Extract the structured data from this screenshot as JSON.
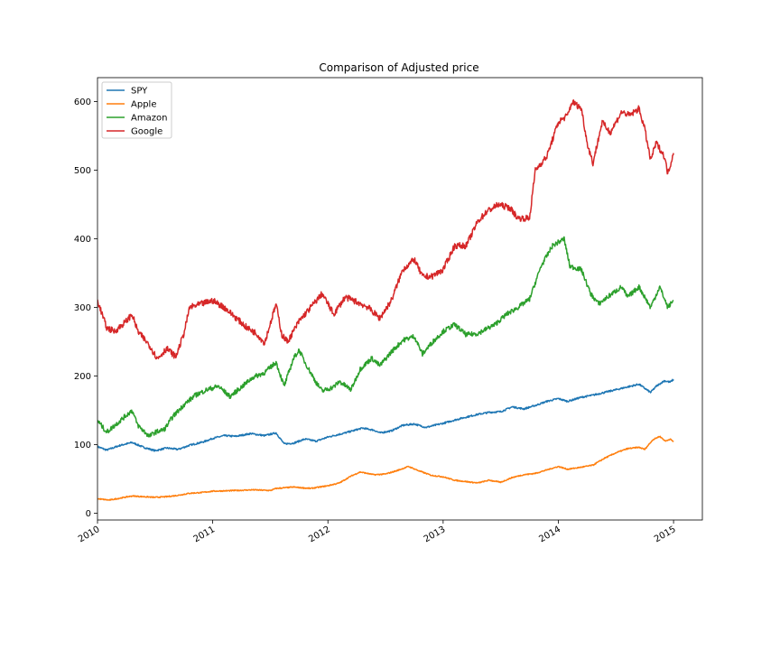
{
  "chart_data": {
    "type": "line",
    "title": "Comparison of Adjusted price",
    "xlabel": "",
    "ylabel": "",
    "xlim": [
      2010.0,
      2015.25
    ],
    "ylim": [
      -10,
      635
    ],
    "grid": false,
    "legend_location": "upper-left",
    "x_ticks": [
      2010,
      2011,
      2012,
      2013,
      2014,
      2015
    ],
    "x_tick_labels": [
      "2010",
      "2011",
      "2012",
      "2013",
      "2014",
      "2015"
    ],
    "y_ticks": [
      0,
      100,
      200,
      300,
      400,
      500,
      600
    ],
    "y_tick_labels": [
      "0",
      "100",
      "200",
      "300",
      "400",
      "500",
      "600"
    ],
    "series": [
      {
        "name": "SPY",
        "color": "#1f77b4",
        "points": [
          [
            2010.0,
            97
          ],
          [
            2010.08,
            92
          ],
          [
            2010.2,
            99
          ],
          [
            2010.3,
            103
          ],
          [
            2010.4,
            96
          ],
          [
            2010.5,
            91
          ],
          [
            2010.6,
            95
          ],
          [
            2010.7,
            93
          ],
          [
            2010.8,
            99
          ],
          [
            2010.92,
            104
          ],
          [
            2011.0,
            109
          ],
          [
            2011.1,
            113
          ],
          [
            2011.2,
            112
          ],
          [
            2011.33,
            116
          ],
          [
            2011.45,
            113
          ],
          [
            2011.55,
            117
          ],
          [
            2011.62,
            101
          ],
          [
            2011.7,
            102
          ],
          [
            2011.8,
            108
          ],
          [
            2011.9,
            105
          ],
          [
            2012.0,
            111
          ],
          [
            2012.15,
            117
          ],
          [
            2012.3,
            124
          ],
          [
            2012.4,
            121
          ],
          [
            2012.45,
            117
          ],
          [
            2012.55,
            120
          ],
          [
            2012.65,
            128
          ],
          [
            2012.75,
            130
          ],
          [
            2012.85,
            125
          ],
          [
            2012.95,
            129
          ],
          [
            2013.0,
            131
          ],
          [
            2013.15,
            138
          ],
          [
            2013.3,
            144
          ],
          [
            2013.4,
            147
          ],
          [
            2013.5,
            148
          ],
          [
            2013.6,
            155
          ],
          [
            2013.7,
            152
          ],
          [
            2013.8,
            157
          ],
          [
            2013.9,
            163
          ],
          [
            2014.0,
            167
          ],
          [
            2014.08,
            163
          ],
          [
            2014.2,
            169
          ],
          [
            2014.3,
            172
          ],
          [
            2014.4,
            176
          ],
          [
            2014.5,
            180
          ],
          [
            2014.6,
            184
          ],
          [
            2014.7,
            188
          ],
          [
            2014.8,
            176
          ],
          [
            2014.85,
            185
          ],
          [
            2014.92,
            193
          ],
          [
            2014.97,
            191
          ],
          [
            2015.0,
            195
          ]
        ]
      },
      {
        "name": "Apple",
        "color": "#ff7f0e",
        "points": [
          [
            2010.0,
            21
          ],
          [
            2010.1,
            19
          ],
          [
            2010.2,
            22
          ],
          [
            2010.3,
            25
          ],
          [
            2010.4,
            24
          ],
          [
            2010.5,
            23
          ],
          [
            2010.6,
            24
          ],
          [
            2010.7,
            26
          ],
          [
            2010.8,
            29
          ],
          [
            2010.9,
            30
          ],
          [
            2011.0,
            32
          ],
          [
            2011.2,
            33
          ],
          [
            2011.35,
            34
          ],
          [
            2011.5,
            33
          ],
          [
            2011.55,
            36
          ],
          [
            2011.7,
            38
          ],
          [
            2011.85,
            36
          ],
          [
            2012.0,
            40
          ],
          [
            2012.1,
            44
          ],
          [
            2012.2,
            54
          ],
          [
            2012.28,
            60
          ],
          [
            2012.4,
            56
          ],
          [
            2012.5,
            57
          ],
          [
            2012.6,
            62
          ],
          [
            2012.7,
            68
          ],
          [
            2012.8,
            61
          ],
          [
            2012.9,
            55
          ],
          [
            2013.0,
            53
          ],
          [
            2013.1,
            48
          ],
          [
            2013.2,
            46
          ],
          [
            2013.3,
            44
          ],
          [
            2013.4,
            48
          ],
          [
            2013.5,
            45
          ],
          [
            2013.6,
            52
          ],
          [
            2013.7,
            56
          ],
          [
            2013.8,
            58
          ],
          [
            2013.9,
            63
          ],
          [
            2014.0,
            68
          ],
          [
            2014.08,
            64
          ],
          [
            2014.2,
            67
          ],
          [
            2014.3,
            70
          ],
          [
            2014.4,
            80
          ],
          [
            2014.5,
            88
          ],
          [
            2014.6,
            94
          ],
          [
            2014.7,
            96
          ],
          [
            2014.75,
            93
          ],
          [
            2014.82,
            107
          ],
          [
            2014.88,
            112
          ],
          [
            2014.93,
            105
          ],
          [
            2014.97,
            108
          ],
          [
            2015.0,
            104
          ]
        ]
      },
      {
        "name": "Amazon",
        "color": "#2ca02c",
        "points": [
          [
            2010.0,
            135
          ],
          [
            2010.08,
            118
          ],
          [
            2010.15,
            128
          ],
          [
            2010.3,
            150
          ],
          [
            2010.35,
            128
          ],
          [
            2010.45,
            112
          ],
          [
            2010.5,
            118
          ],
          [
            2010.58,
            122
          ],
          [
            2010.65,
            140
          ],
          [
            2010.75,
            158
          ],
          [
            2010.85,
            172
          ],
          [
            2010.95,
            180
          ],
          [
            2011.05,
            185
          ],
          [
            2011.15,
            170
          ],
          [
            2011.25,
            184
          ],
          [
            2011.35,
            198
          ],
          [
            2011.45,
            205
          ],
          [
            2011.55,
            220
          ],
          [
            2011.62,
            185
          ],
          [
            2011.7,
            225
          ],
          [
            2011.75,
            238
          ],
          [
            2011.8,
            220
          ],
          [
            2011.9,
            190
          ],
          [
            2011.95,
            178
          ],
          [
            2012.05,
            184
          ],
          [
            2012.1,
            192
          ],
          [
            2012.2,
            180
          ],
          [
            2012.28,
            210
          ],
          [
            2012.38,
            226
          ],
          [
            2012.45,
            215
          ],
          [
            2012.55,
            235
          ],
          [
            2012.65,
            252
          ],
          [
            2012.75,
            258
          ],
          [
            2012.82,
            232
          ],
          [
            2012.9,
            248
          ],
          [
            2013.0,
            265
          ],
          [
            2013.1,
            275
          ],
          [
            2013.2,
            260
          ],
          [
            2013.3,
            262
          ],
          [
            2013.45,
            275
          ],
          [
            2013.55,
            290
          ],
          [
            2013.65,
            300
          ],
          [
            2013.75,
            312
          ],
          [
            2013.85,
            360
          ],
          [
            2013.95,
            390
          ],
          [
            2014.05,
            400
          ],
          [
            2014.1,
            360
          ],
          [
            2014.2,
            355
          ],
          [
            2014.28,
            320
          ],
          [
            2014.35,
            305
          ],
          [
            2014.45,
            318
          ],
          [
            2014.55,
            330
          ],
          [
            2014.6,
            315
          ],
          [
            2014.7,
            330
          ],
          [
            2014.8,
            300
          ],
          [
            2014.88,
            330
          ],
          [
            2014.95,
            300
          ],
          [
            2015.0,
            310
          ]
        ]
      },
      {
        "name": "Google",
        "color": "#d62728",
        "points": [
          [
            2010.0,
            310
          ],
          [
            2010.08,
            270
          ],
          [
            2010.15,
            265
          ],
          [
            2010.25,
            280
          ],
          [
            2010.3,
            290
          ],
          [
            2010.35,
            265
          ],
          [
            2010.45,
            245
          ],
          [
            2010.52,
            225
          ],
          [
            2010.6,
            240
          ],
          [
            2010.68,
            228
          ],
          [
            2010.75,
            262
          ],
          [
            2010.8,
            300
          ],
          [
            2010.9,
            305
          ],
          [
            2011.0,
            310
          ],
          [
            2011.1,
            300
          ],
          [
            2011.2,
            285
          ],
          [
            2011.3,
            270
          ],
          [
            2011.38,
            262
          ],
          [
            2011.45,
            248
          ],
          [
            2011.55,
            305
          ],
          [
            2011.6,
            260
          ],
          [
            2011.65,
            250
          ],
          [
            2011.75,
            280
          ],
          [
            2011.85,
            300
          ],
          [
            2011.95,
            320
          ],
          [
            2012.05,
            290
          ],
          [
            2012.15,
            315
          ],
          [
            2012.25,
            308
          ],
          [
            2012.35,
            300
          ],
          [
            2012.45,
            284
          ],
          [
            2012.55,
            310
          ],
          [
            2012.65,
            355
          ],
          [
            2012.75,
            370
          ],
          [
            2012.82,
            345
          ],
          [
            2012.9,
            345
          ],
          [
            2013.0,
            355
          ],
          [
            2013.1,
            390
          ],
          [
            2013.2,
            390
          ],
          [
            2013.3,
            425
          ],
          [
            2013.38,
            440
          ],
          [
            2013.48,
            450
          ],
          [
            2013.58,
            445
          ],
          [
            2013.65,
            430
          ],
          [
            2013.75,
            430
          ],
          [
            2013.8,
            500
          ],
          [
            2013.9,
            520
          ],
          [
            2014.0,
            570
          ],
          [
            2014.08,
            580
          ],
          [
            2014.12,
            600
          ],
          [
            2014.2,
            590
          ],
          [
            2014.25,
            540
          ],
          [
            2014.3,
            510
          ],
          [
            2014.38,
            570
          ],
          [
            2014.45,
            555
          ],
          [
            2014.55,
            585
          ],
          [
            2014.62,
            580
          ],
          [
            2014.7,
            590
          ],
          [
            2014.75,
            560
          ],
          [
            2014.8,
            515
          ],
          [
            2014.85,
            540
          ],
          [
            2014.92,
            520
          ],
          [
            2014.95,
            495
          ],
          [
            2015.0,
            525
          ]
        ]
      }
    ]
  }
}
